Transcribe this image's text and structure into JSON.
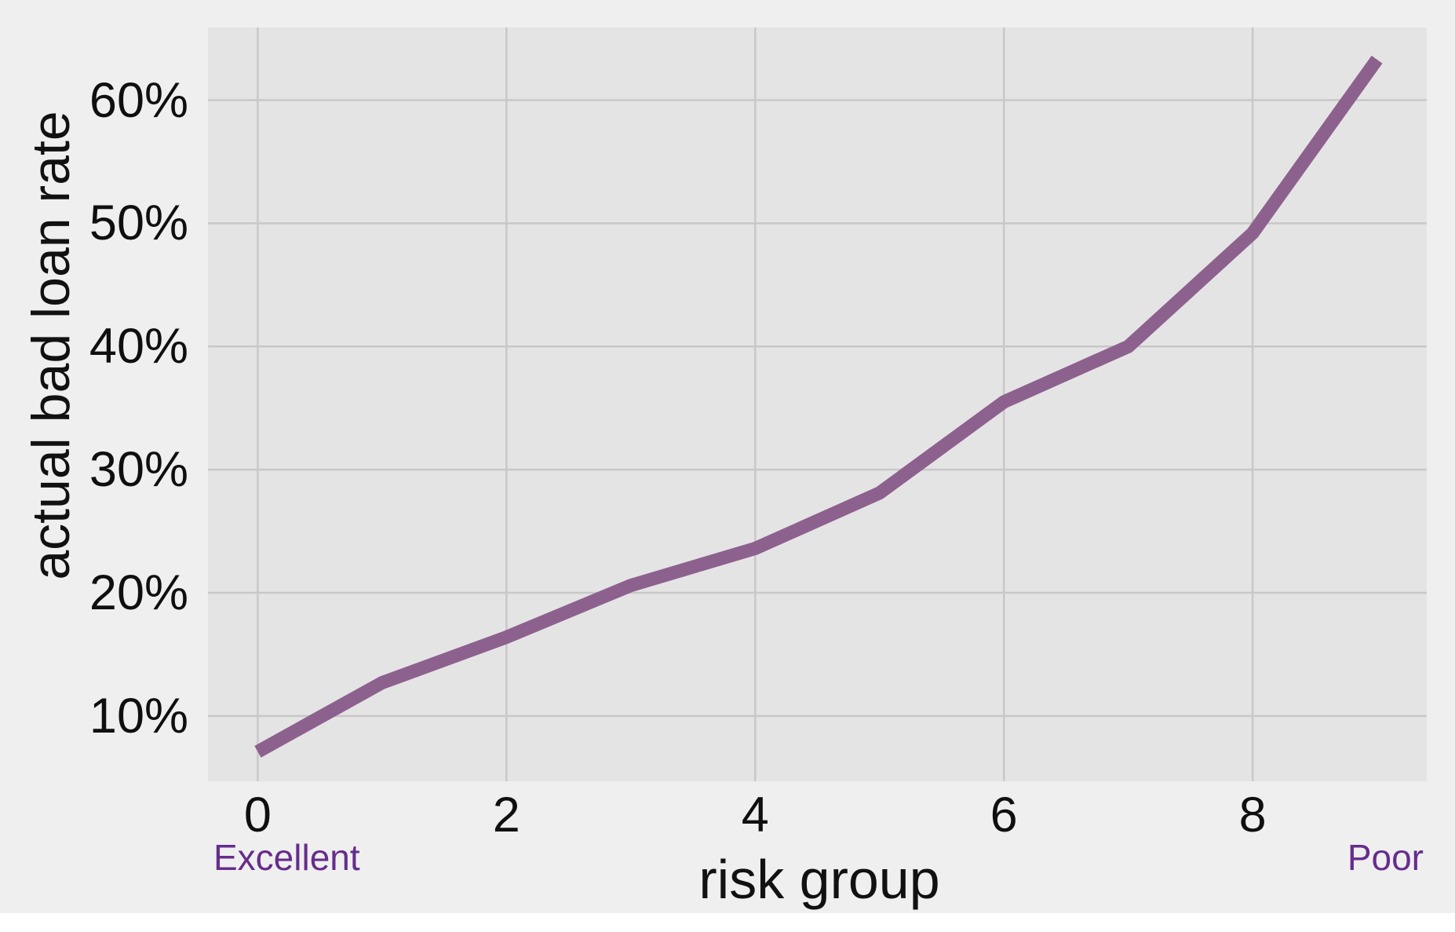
{
  "figure": {
    "background_color": "#f0eff0",
    "panel_color": "#e5e4e5",
    "grid_color": "#c8c8c8",
    "bottom_band_color": "#ffffff",
    "text_color": "#0f0f0f"
  },
  "chart_data": {
    "type": "line",
    "title": "",
    "xlabel": "risk group",
    "ylabel": "actual bad loan rate",
    "x": [
      0,
      1,
      2,
      3,
      4,
      5,
      6,
      7,
      8,
      9
    ],
    "values": [
      7.1,
      12.7,
      16.4,
      20.6,
      23.6,
      28.1,
      35.5,
      40.0,
      49.2,
      63.3
    ],
    "values_unit": "%",
    "line_color": "#8d618e",
    "line_width": 17,
    "xlim": [
      -0.4,
      9.4
    ],
    "ylim": [
      4.7,
      65.9
    ],
    "x_ticks": [
      0,
      2,
      4,
      6,
      8
    ],
    "x_tick_labels": [
      "0",
      "2",
      "4",
      "6",
      "8"
    ],
    "y_ticks": [
      10,
      20,
      30,
      40,
      50,
      60
    ],
    "y_tick_labels": [
      "10%",
      "20%",
      "30%",
      "40%",
      "50%",
      "60%"
    ],
    "grid": true,
    "legend_position": "none",
    "annotations": [
      {
        "text": "Excellent",
        "align": "left",
        "color": "#662d8c"
      },
      {
        "text": "Poor",
        "align": "right",
        "color": "#662d8c"
      }
    ]
  }
}
